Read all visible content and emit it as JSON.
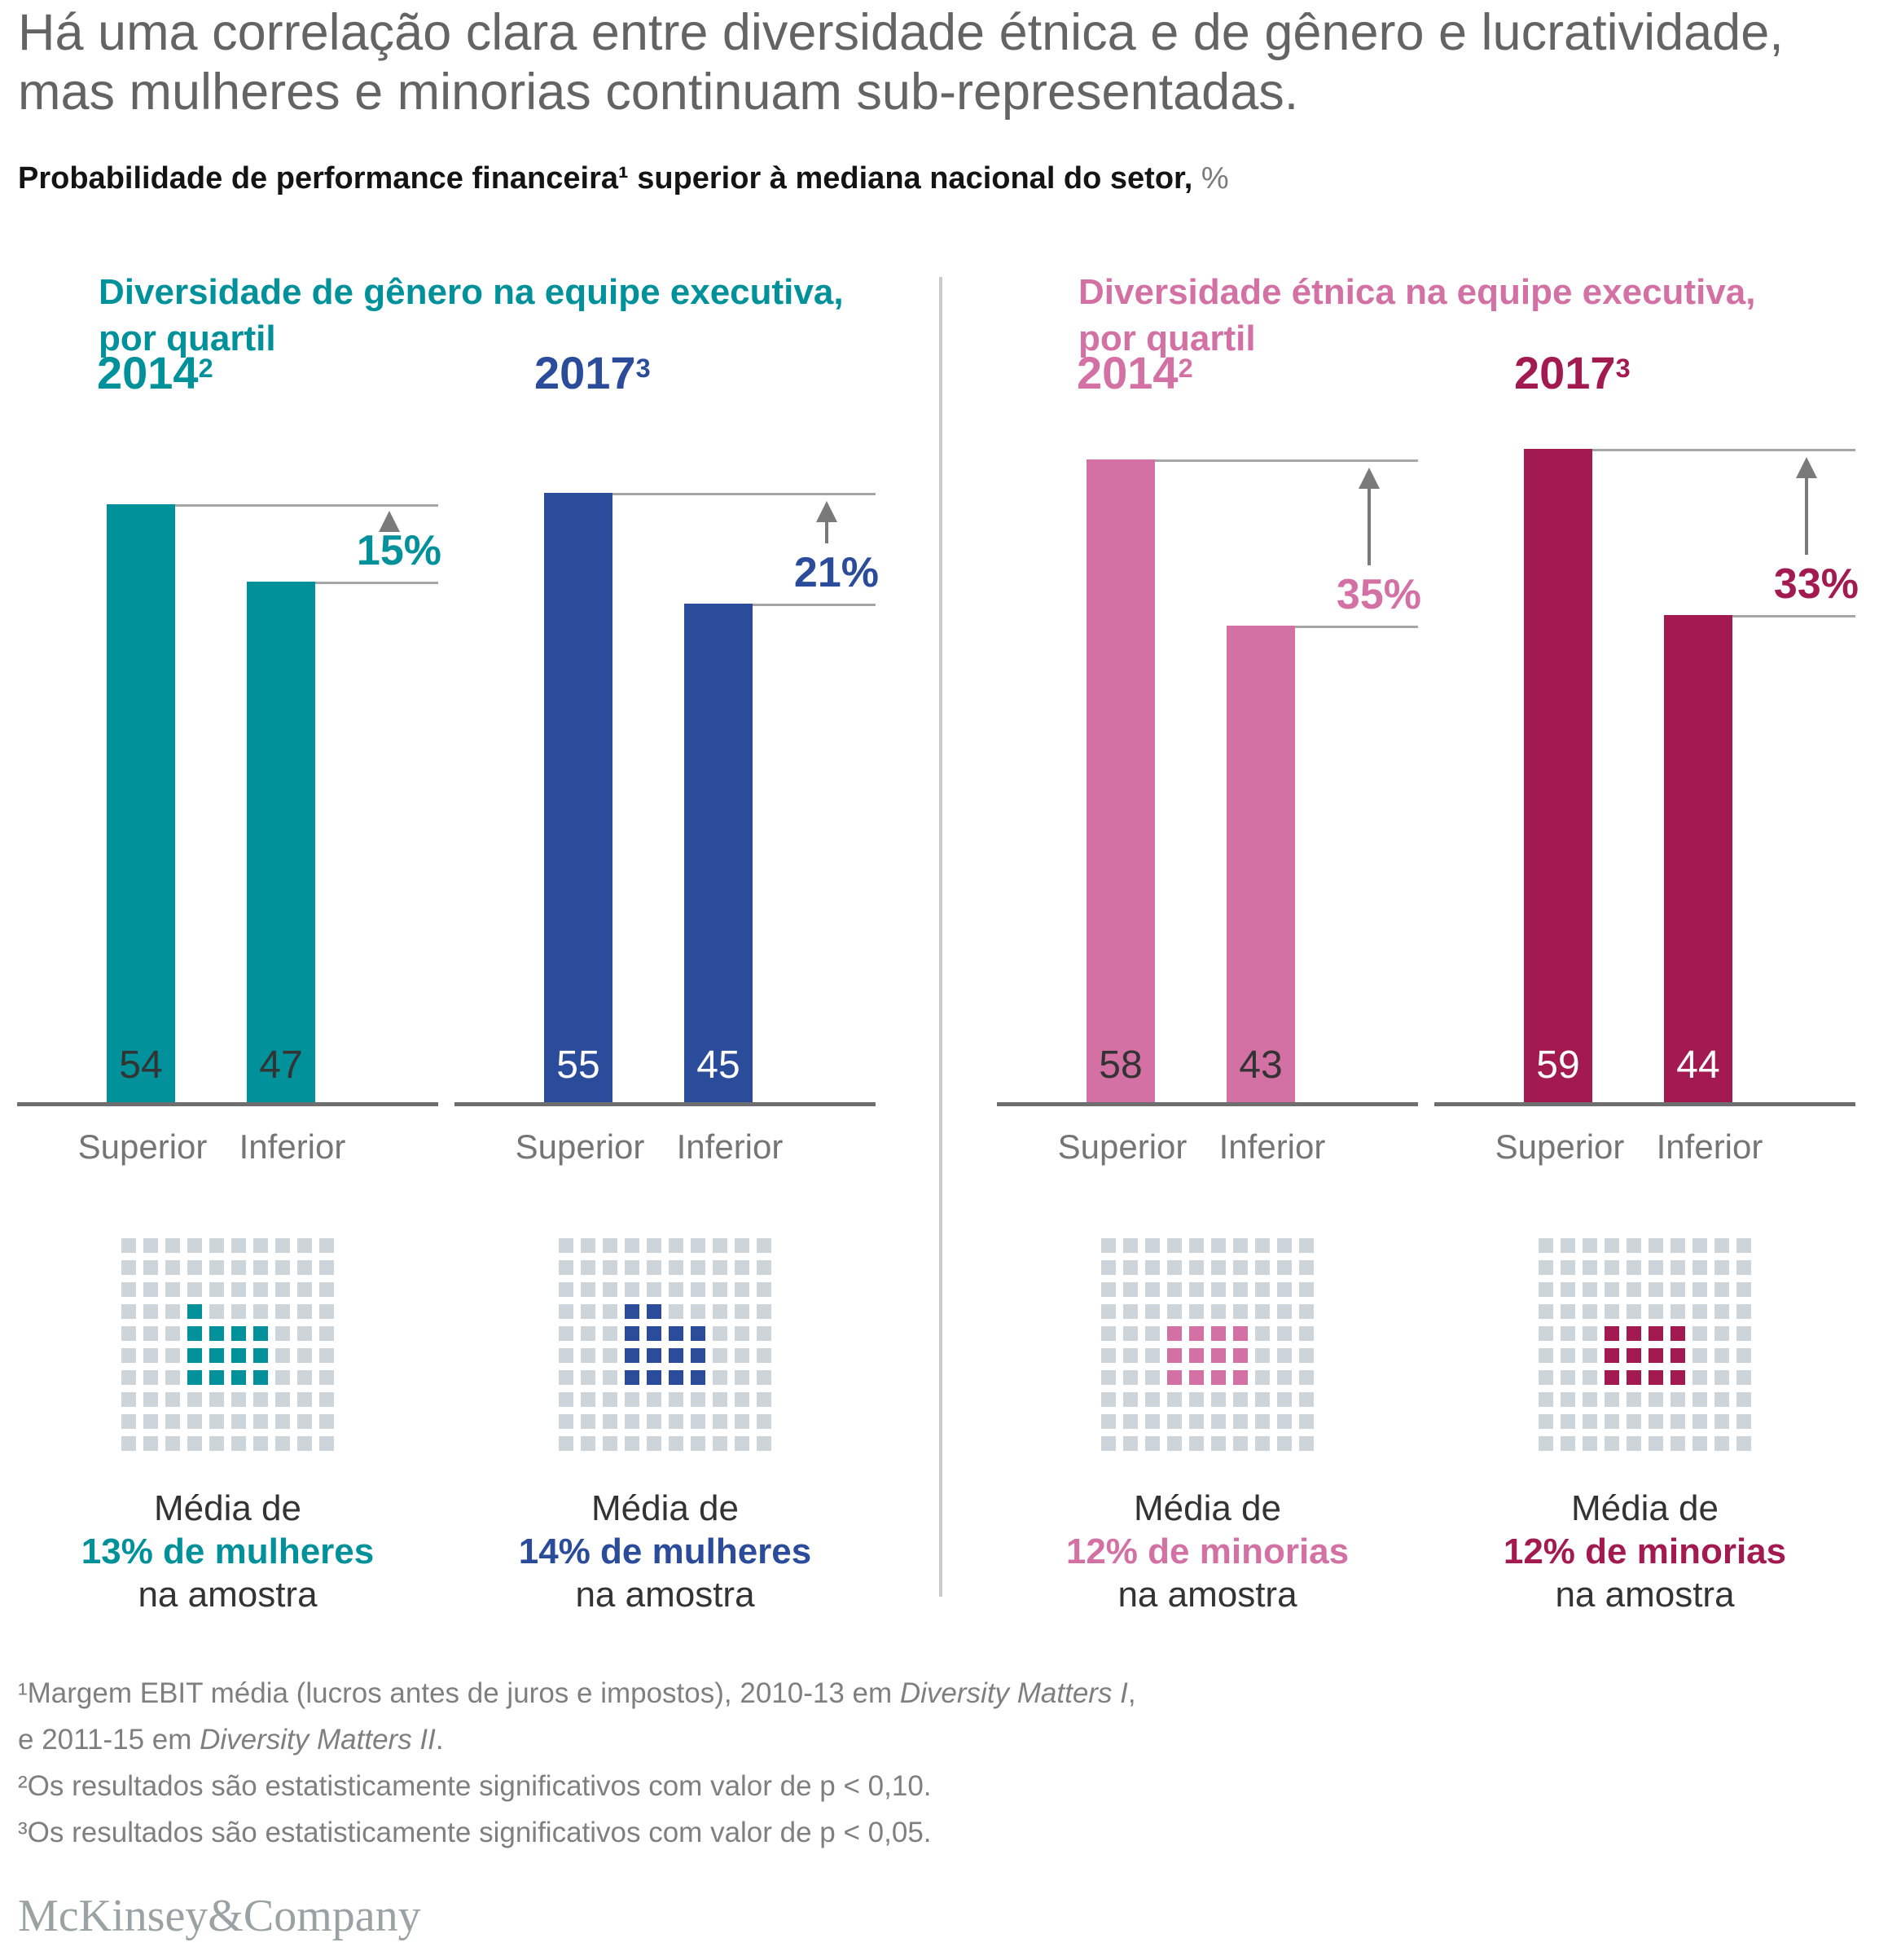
{
  "title": "Há uma correlação clara entre diversidade étnica e de gênero e lucratividade, mas mulheres e minorias continuam sub-representadas.",
  "subtitle": {
    "main": "Probabilidade de performance financeira¹ superior à mediana nacional do setor,",
    "unit": " %"
  },
  "chart_data": {
    "type": "bar",
    "unit": "%",
    "categories": [
      "Superior",
      "Inferior"
    ],
    "ylim": [
      0,
      63
    ],
    "grid": false,
    "sections": [
      {
        "id": "gender",
        "header_line1": "Diversidade de gênero na equipe executiva,",
        "header_line2": "por quartil",
        "accent": "#00919B",
        "groups": [
          {
            "year": "2014",
            "year_sup": "2",
            "bar_color": "#00919B",
            "value_label_color": "#333333",
            "values": [
              54,
              47
            ],
            "diff_label": "15%",
            "waffle": {
              "total": 100,
              "filled": 13,
              "fill_color": "#00919B"
            },
            "avg_line1": "Média de",
            "avg_line2": "13% de mulheres",
            "avg_line3": "na amostra"
          },
          {
            "year": "2017",
            "year_sup": "3",
            "bar_color": "#2B4B9B",
            "value_label_color": "#ffffff",
            "values": [
              55,
              45
            ],
            "diff_label": "21%",
            "waffle": {
              "total": 100,
              "filled": 14,
              "fill_color": "#2B4B9B"
            },
            "avg_line1": "Média de",
            "avg_line2": "14% de mulheres",
            "avg_line3": "na amostra"
          }
        ]
      },
      {
        "id": "ethnic",
        "header_line1": "Diversidade étnica na equipe executiva,",
        "header_line2": "por quartil",
        "accent": "#D371A5",
        "groups": [
          {
            "year": "2014",
            "year_sup": "2",
            "bar_color": "#D371A5",
            "value_label_color": "#333333",
            "values": [
              58,
              43
            ],
            "diff_label": "35%",
            "waffle": {
              "total": 100,
              "filled": 12,
              "fill_color": "#D371A5"
            },
            "avg_line1": "Média de",
            "avg_line2": "12% de minorias",
            "avg_line3": "na amostra"
          },
          {
            "year": "2017",
            "year_sup": "3",
            "bar_color": "#A31A51",
            "value_label_color": "#ffffff",
            "values": [
              59,
              44
            ],
            "diff_label": "33%",
            "waffle": {
              "total": 100,
              "filled": 12,
              "fill_color": "#A31A51"
            },
            "avg_line1": "Média de",
            "avg_line2": "12% de minorias",
            "avg_line3": "na amostra"
          }
        ]
      }
    ]
  },
  "footnotes": [
    [
      {
        "t": "¹Margem EBIT média (lucros antes de juros e impostos), 2010-13 em "
      },
      {
        "t": "Diversity Matters I",
        "italic": true
      },
      {
        "t": ","
      }
    ],
    [
      {
        "t": " e 2011-15 em "
      },
      {
        "t": "Diversity Matters II",
        "italic": true
      },
      {
        "t": "."
      }
    ],
    [
      {
        "t": "²Os resultados são estatisticamente significativos com valor de p < 0,10."
      }
    ],
    [
      {
        "t": "³Os resultados são estatisticamente significativos com valor de p < 0,05."
      }
    ]
  ],
  "logo": "McKinsey&Company",
  "colors": {
    "title_text": "#646464",
    "subtitle_text": "#141414",
    "unit_text": "#7b7b7b",
    "body_text": "#333333",
    "muted_text": "#757575",
    "footnote_text": "#7f7f7f",
    "logo_text": "#9aa2a4",
    "ref_line": "#a6a6a6",
    "baseline": "#6e6e6e",
    "divider": "#cbcbcb",
    "arrow": "#7a7a7a",
    "waffle_empty": "#cdd5db",
    "bg": "#ffffff"
  }
}
